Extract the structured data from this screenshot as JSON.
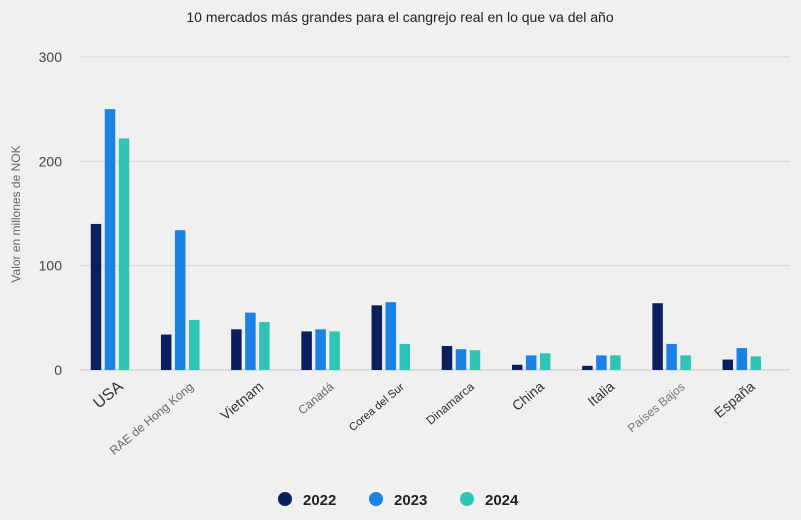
{
  "chart_data": {
    "type": "bar",
    "title": "10 mercados más grandes para el cangrejo real en lo que va del año",
    "ylabel": "Valor en millones de NOK",
    "xlabel": "",
    "ylim": [
      0,
      300
    ],
    "yticks": [
      0,
      100,
      200,
      300
    ],
    "grid": true,
    "legend_position": "bottom",
    "categories": [
      "USA",
      "RAE de Hong Kong",
      "Vietnam",
      "Canadá",
      "Corea del Sur",
      "Dinamarca",
      "China",
      "Italia",
      "Países Bajos",
      "España"
    ],
    "series": [
      {
        "name": "2022",
        "color": "#0b1f5c",
        "values": [
          140,
          34,
          39,
          37,
          62,
          23,
          5,
          4,
          64,
          10
        ]
      },
      {
        "name": "2023",
        "color": "#1a82e6",
        "values": [
          250,
          134,
          55,
          39,
          65,
          20,
          14,
          14,
          25,
          21
        ]
      },
      {
        "name": "2024",
        "color": "#2ec4b6",
        "values": [
          222,
          48,
          46,
          37,
          25,
          19,
          16,
          14,
          14,
          13
        ]
      }
    ]
  }
}
